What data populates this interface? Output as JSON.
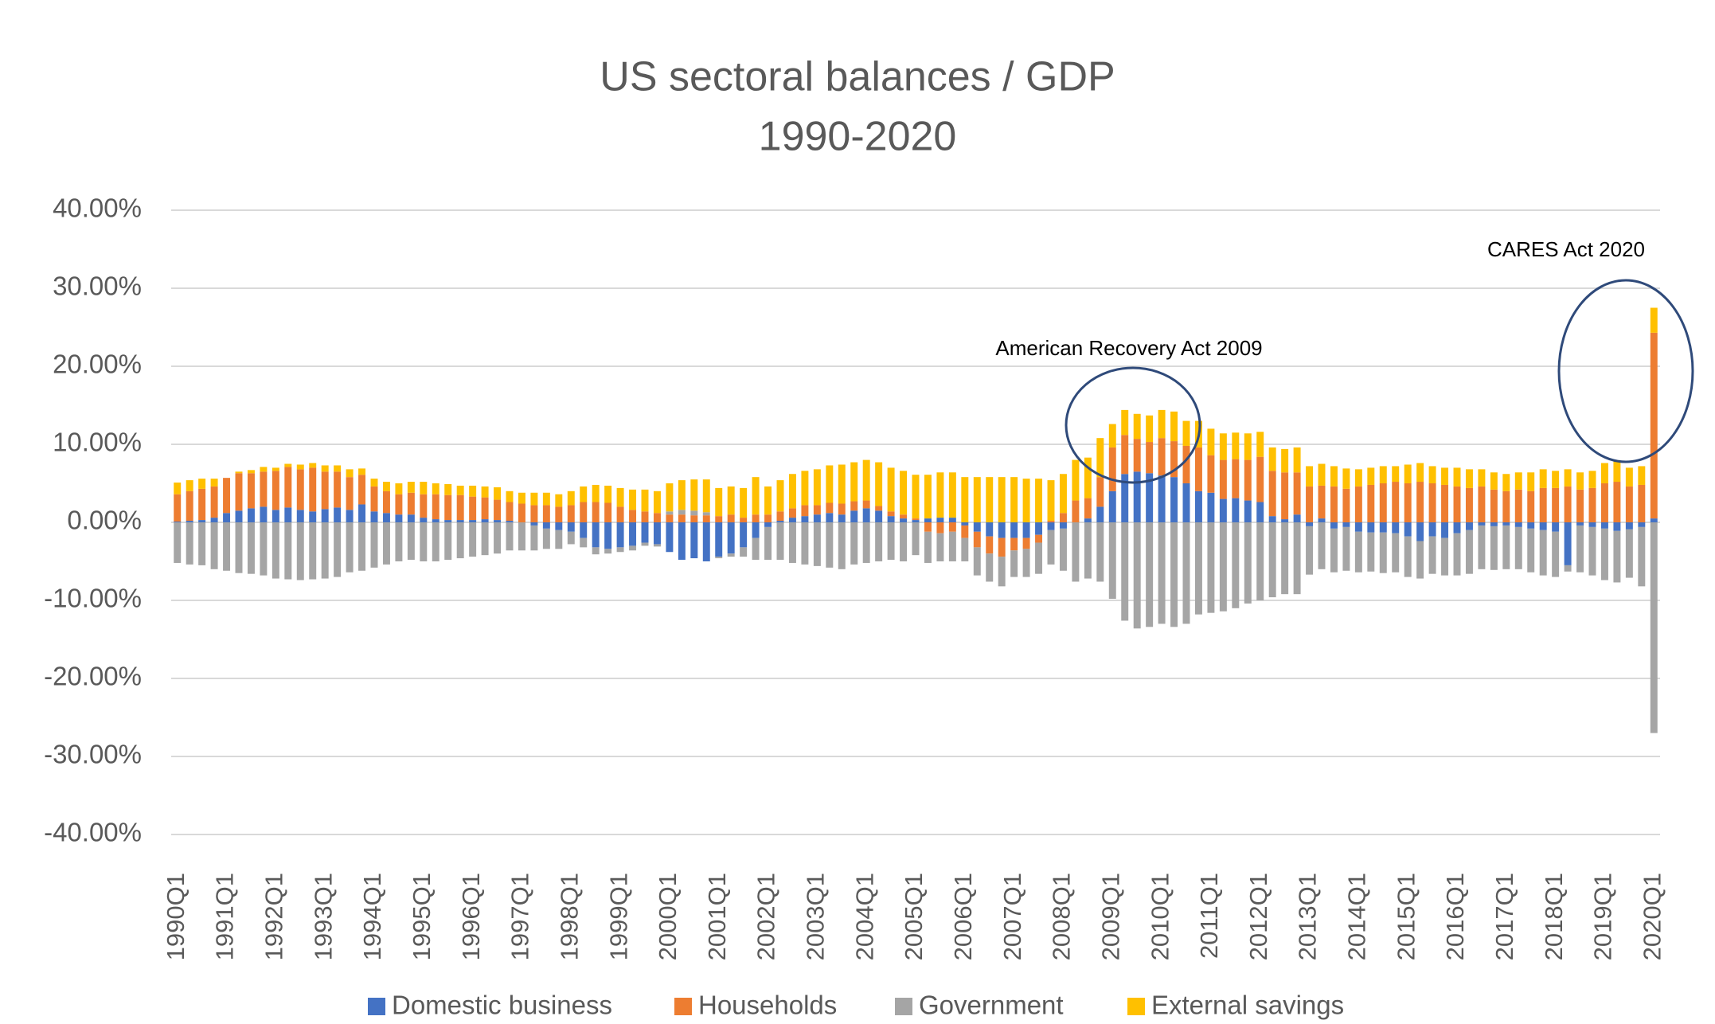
{
  "chart_data": {
    "type": "stacked-bar",
    "title": "US sectoral balances / GDP",
    "subtitle": "1990-2020",
    "annotations": [
      "American Recovery Act 2009",
      "CARES Act 2020"
    ],
    "categories": [
      "1990Q1",
      null,
      null,
      null,
      "1991Q1",
      null,
      null,
      null,
      "1992Q1",
      null,
      null,
      null,
      "1993Q1",
      null,
      null,
      null,
      "1994Q1",
      null,
      null,
      null,
      "1995Q1",
      null,
      null,
      null,
      "1996Q1",
      null,
      null,
      null,
      "1997Q1",
      null,
      null,
      null,
      "1998Q1",
      null,
      null,
      null,
      "1999Q1",
      null,
      null,
      null,
      "2000Q1",
      null,
      null,
      null,
      "2001Q1",
      null,
      null,
      null,
      "2002Q1",
      null,
      null,
      null,
      "2003Q1",
      null,
      null,
      null,
      "2004Q1",
      null,
      null,
      null,
      "2005Q1",
      null,
      null,
      null,
      "2006Q1",
      null,
      null,
      null,
      "2007Q1",
      null,
      null,
      null,
      "2008Q1",
      null,
      null,
      null,
      "2009Q1",
      null,
      null,
      null,
      "2010Q1",
      null,
      null,
      null,
      "2011Q1",
      null,
      null,
      null,
      "2012Q1",
      null,
      null,
      null,
      "2013Q1",
      null,
      null,
      null,
      "2014Q1",
      null,
      null,
      null,
      "2015Q1",
      null,
      null,
      null,
      "2016Q1",
      null,
      null,
      null,
      "2017Q1",
      null,
      null,
      null,
      "2018Q1",
      null,
      null,
      null,
      "2019Q1",
      null,
      null,
      null,
      "2020Q1"
    ],
    "series": [
      {
        "name": "Domestic business",
        "color": "#4472c4",
        "values": [
          0.1,
          0.2,
          0.3,
          0.6,
          1.2,
          1.5,
          1.8,
          2.0,
          1.6,
          1.9,
          1.6,
          1.4,
          1.7,
          1.9,
          1.6,
          2.3,
          1.4,
          1.2,
          1.0,
          1.0,
          0.6,
          0.4,
          0.3,
          0.3,
          0.3,
          0.4,
          0.3,
          0.2,
          0.0,
          -0.4,
          -0.8,
          -1.0,
          -1.2,
          -2.0,
          -3.2,
          -3.4,
          -3.2,
          -3.0,
          -2.6,
          -2.8,
          -3.8,
          -4.8,
          -4.6,
          -5.0,
          -4.4,
          -4.0,
          -3.2,
          -2.0,
          -0.6,
          0.2,
          0.6,
          0.8,
          1.0,
          1.2,
          1.0,
          1.5,
          1.8,
          1.5,
          0.8,
          0.5,
          0.3,
          0.5,
          0.6,
          0.6,
          -0.4,
          -1.2,
          -1.8,
          -2.0,
          -2.0,
          -2.0,
          -1.6,
          -1.0,
          -0.8,
          0.0,
          0.5,
          2.0,
          4.0,
          6.2,
          6.5,
          6.3,
          6.0,
          5.8,
          5.0,
          4.0,
          3.8,
          3.0,
          3.1,
          2.8,
          2.6,
          0.8,
          0.4,
          1.0,
          -0.5,
          0.5,
          -0.8,
          -0.6,
          -1.2,
          -1.3,
          -1.3,
          -1.4,
          -1.8,
          -2.4,
          -1.8,
          -2.0,
          -1.4,
          -1.0,
          -0.4,
          -0.5,
          -0.4,
          -0.6,
          -0.8,
          -1.0,
          -1.2,
          -5.5,
          -0.4,
          -0.6,
          -0.8,
          -1.1,
          -0.9,
          -0.6,
          0.5
        ]
      },
      {
        "name": "Households",
        "color": "#ed7d31",
        "values": [
          3.5,
          3.8,
          4.0,
          4.0,
          4.5,
          4.8,
          4.5,
          4.5,
          5.0,
          5.2,
          5.2,
          5.6,
          4.8,
          4.6,
          4.2,
          3.8,
          3.2,
          2.8,
          2.6,
          2.8,
          3.0,
          3.2,
          3.2,
          3.2,
          3.0,
          2.8,
          2.6,
          2.4,
          2.4,
          2.2,
          2.2,
          2.0,
          2.2,
          2.6,
          2.6,
          2.5,
          2.0,
          1.6,
          1.4,
          1.2,
          1.0,
          1.0,
          0.9,
          0.9,
          0.8,
          1.0,
          0.6,
          1.0,
          1.0,
          1.2,
          1.2,
          1.4,
          1.2,
          1.3,
          1.4,
          1.2,
          1.0,
          0.6,
          0.6,
          0.5,
          0.2,
          -1.2,
          -1.4,
          -1.2,
          -1.6,
          -2.0,
          -2.2,
          -2.4,
          -1.6,
          -1.4,
          -1.0,
          0.2,
          1.2,
          2.8,
          2.6,
          3.8,
          5.6,
          5.0,
          4.2,
          4.0,
          4.8,
          4.6,
          4.8,
          5.6,
          4.8,
          5.0,
          5.0,
          5.2,
          5.8,
          5.8,
          6.0,
          5.4,
          4.6,
          4.2,
          4.6,
          4.3,
          4.6,
          4.8,
          5.0,
          5.2,
          5.0,
          5.2,
          5.0,
          4.8,
          4.6,
          4.4,
          4.6,
          4.2,
          4.0,
          4.2,
          4.0,
          4.4,
          4.4,
          4.6,
          4.2,
          4.4,
          5.0,
          5.2,
          4.6,
          4.8,
          23.8
        ]
      },
      {
        "name": "Government",
        "color": "#a5a5a5",
        "values": [
          -5.2,
          -5.4,
          -5.5,
          -6.0,
          -6.2,
          -6.5,
          -6.6,
          -6.8,
          -7.2,
          -7.3,
          -7.4,
          -7.3,
          -7.2,
          -7.0,
          -6.4,
          -6.2,
          -5.8,
          -5.4,
          -5.0,
          -4.8,
          -5.0,
          -5.0,
          -4.8,
          -4.6,
          -4.4,
          -4.2,
          -4.0,
          -3.6,
          -3.6,
          -3.2,
          -2.6,
          -2.4,
          -1.6,
          -1.2,
          -0.9,
          -0.6,
          -0.6,
          -0.6,
          -0.4,
          -0.3,
          0.4,
          0.6,
          0.6,
          0.4,
          -0.2,
          -0.4,
          -1.2,
          -2.8,
          -4.2,
          -4.8,
          -5.2,
          -5.4,
          -5.6,
          -5.8,
          -6.0,
          -5.4,
          -5.2,
          -5.0,
          -4.8,
          -5.0,
          -4.2,
          -4.0,
          -3.6,
          -3.8,
          -3.0,
          -3.6,
          -3.6,
          -3.8,
          -3.4,
          -3.6,
          -4.0,
          -4.4,
          -5.4,
          -7.6,
          -7.2,
          -7.6,
          -9.8,
          -12.6,
          -13.6,
          -13.4,
          -13.0,
          -13.4,
          -13.0,
          -11.8,
          -11.6,
          -11.4,
          -11.0,
          -10.4,
          -10.0,
          -9.6,
          -9.2,
          -9.2,
          -6.2,
          -6.0,
          -5.6,
          -5.6,
          -5.2,
          -5.0,
          -5.2,
          -5.0,
          -5.2,
          -4.8,
          -4.8,
          -4.8,
          -5.4,
          -5.6,
          -5.6,
          -5.6,
          -5.6,
          -5.4,
          -5.6,
          -5.8,
          -5.8,
          -0.8,
          -6.0,
          -6.2,
          -6.6,
          -6.6,
          -6.2,
          -7.6,
          -27.0
        ]
      },
      {
        "name": "External savings",
        "color": "#ffc000",
        "values": [
          1.5,
          1.4,
          1.3,
          1.0,
          0.0,
          0.2,
          0.4,
          0.6,
          0.4,
          0.4,
          0.6,
          0.6,
          0.8,
          0.8,
          1.0,
          0.8,
          1.0,
          1.2,
          1.4,
          1.4,
          1.6,
          1.4,
          1.4,
          1.2,
          1.4,
          1.4,
          1.6,
          1.4,
          1.4,
          1.6,
          1.6,
          1.6,
          1.8,
          2.0,
          2.2,
          2.2,
          2.4,
          2.6,
          2.8,
          2.8,
          3.6,
          3.8,
          4.0,
          4.2,
          3.6,
          3.6,
          3.8,
          4.8,
          3.6,
          4.0,
          4.4,
          4.4,
          4.6,
          4.8,
          5.0,
          5.0,
          5.2,
          5.6,
          5.6,
          5.6,
          5.6,
          5.6,
          5.8,
          5.8,
          5.8,
          5.8,
          5.8,
          5.8,
          5.8,
          5.6,
          5.6,
          5.2,
          5.0,
          5.2,
          5.2,
          5.0,
          3.0,
          3.2,
          3.2,
          3.4,
          3.6,
          3.8,
          3.2,
          3.4,
          3.4,
          3.4,
          3.4,
          3.4,
          3.2,
          3.0,
          3.0,
          3.2,
          2.6,
          2.8,
          2.6,
          2.6,
          2.2,
          2.2,
          2.2,
          2.0,
          2.4,
          2.4,
          2.2,
          2.2,
          2.4,
          2.4,
          2.2,
          2.2,
          2.2,
          2.2,
          2.4,
          2.4,
          2.2,
          2.2,
          2.2,
          2.2,
          2.6,
          2.6,
          2.4,
          2.4,
          3.2
        ]
      }
    ],
    "ylim": [
      -40,
      40
    ],
    "yticks": [
      {
        "value": -40,
        "label": "-40.00%"
      },
      {
        "value": -30,
        "label": "-30.00%"
      },
      {
        "value": -20,
        "label": "-20.00%"
      },
      {
        "value": -10,
        "label": "-10.00%"
      },
      {
        "value": 0,
        "label": "0.00%"
      },
      {
        "value": 10,
        "label": "10.00%"
      },
      {
        "value": 20,
        "label": "20.00%"
      },
      {
        "value": 30,
        "label": "30.00%"
      },
      {
        "value": 40,
        "label": "40.00%"
      }
    ],
    "grid": true,
    "legend": "bottom"
  }
}
